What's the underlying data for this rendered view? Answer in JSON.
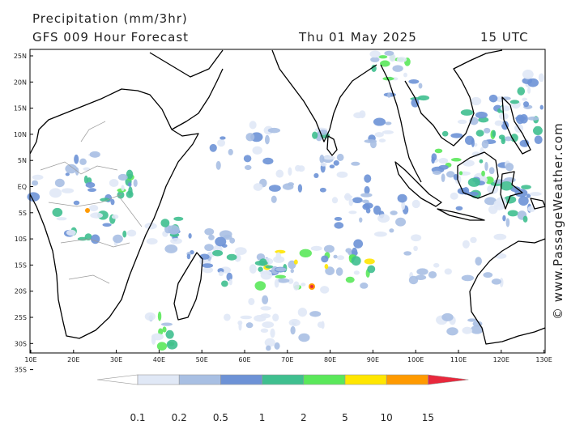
{
  "header": {
    "title": "Precipitation (mm/3hr)",
    "subtitle": "GFS 009 Hour Forecast",
    "date": "Thu 01 May 2025",
    "time": "15 UTC"
  },
  "map": {
    "lat_ticks": [
      "25N",
      "20N",
      "15N",
      "10N",
      "5N",
      "EQ",
      "5S",
      "10S",
      "15S",
      "20S",
      "25S",
      "30S",
      "35S"
    ],
    "lon_ticks": [
      "10E",
      "20E",
      "30E",
      "40E",
      "50E",
      "60E",
      "70E",
      "80E",
      "90E",
      "100E",
      "110E",
      "120E",
      "130E"
    ],
    "ocean_color": "#ffffff",
    "land_color": "#ffffff",
    "coast_color": "#000000",
    "border_color": "#9a9a9a"
  },
  "legend": {
    "labels": [
      "0.1",
      "0.2",
      "0.5",
      "1",
      "2",
      "5",
      "10",
      "15"
    ],
    "colors": [
      "#ffffff",
      "#e0e8f6",
      "#a8bfe3",
      "#6d92d6",
      "#3fbf8f",
      "#5ae85a",
      "#ffe600",
      "#ff9a00",
      "#e8283c"
    ]
  },
  "copyright": "© www.PassageWeather.com"
}
